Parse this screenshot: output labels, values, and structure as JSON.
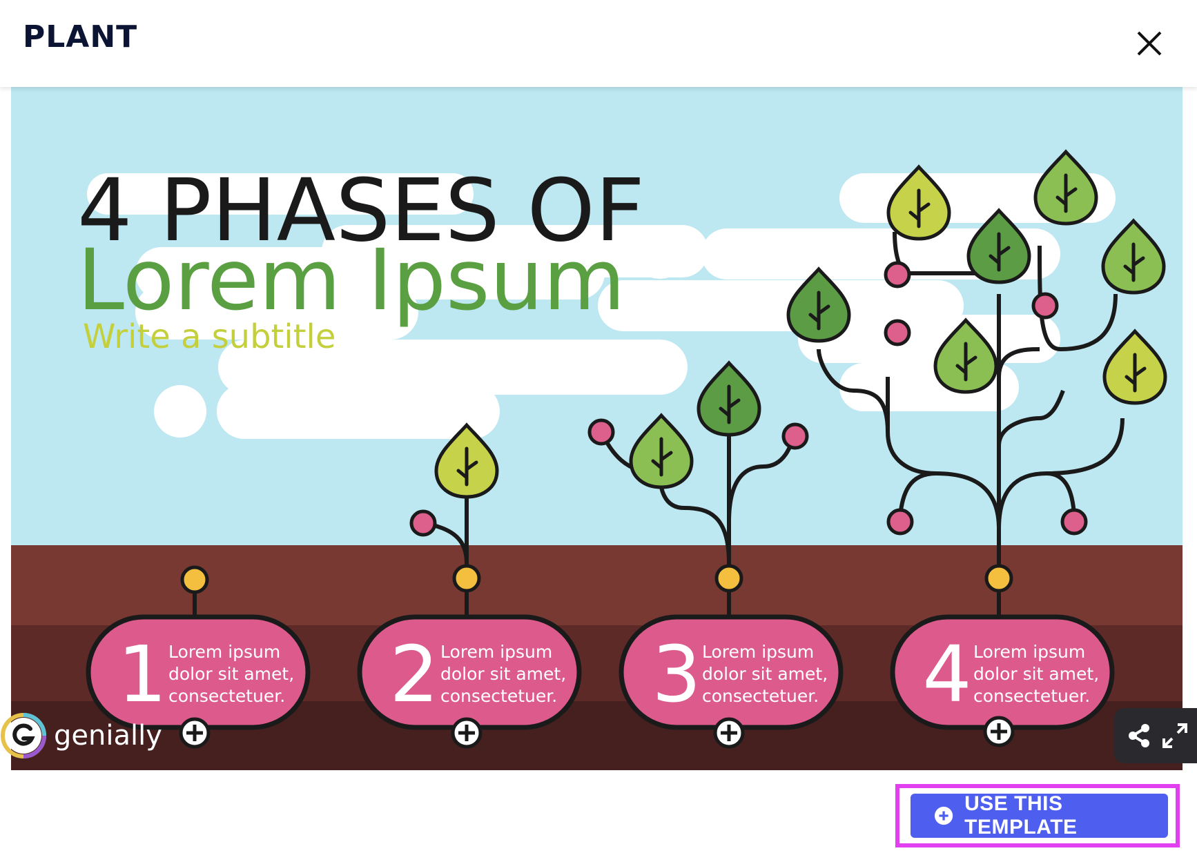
{
  "modal": {
    "title": "PLANT",
    "close_icon": "close-icon"
  },
  "slide": {
    "headline": "4 PHASES OF",
    "main_title": "Lorem Ipsum",
    "subtitle": "Write a subtitle",
    "phases": [
      {
        "number": "1",
        "line1": "Lorem ipsum",
        "line2": "dolor sit amet,",
        "line3": "consectetuer."
      },
      {
        "number": "2",
        "line1": "Lorem ipsum",
        "line2": "dolor sit amet,",
        "line3": "consectetuer."
      },
      {
        "number": "3",
        "line1": "Lorem ipsum",
        "line2": "dolor sit amet,",
        "line3": "consectetuer."
      },
      {
        "number": "4",
        "line1": "Lorem ipsum",
        "line2": "dolor sit amet,",
        "line3": "consectetuer."
      }
    ],
    "colors": {
      "sky": "#bde7f1",
      "cloud": "#ffffff",
      "soil_top": "#773932",
      "soil_mid": "#5e2a27",
      "soil_bottom": "#46201f",
      "pill": "#dc5b8c",
      "bulb": "#f4bf3f",
      "berry": "#dd5f8c",
      "leaf_dark": "#5b9c45",
      "leaf_mid": "#8bbf54",
      "leaf_light": "#c6d24a",
      "title_green": "#5b9f43",
      "subtitle_yellow": "#c4cf3c"
    }
  },
  "branding": {
    "logo_text": "genially"
  },
  "controls": {
    "share_icon": "share-icon",
    "fullscreen_icon": "expand-icon"
  },
  "footer": {
    "use_template_label": "USE THIS TEMPLATE",
    "plus_icon": "plus-circle-icon"
  }
}
